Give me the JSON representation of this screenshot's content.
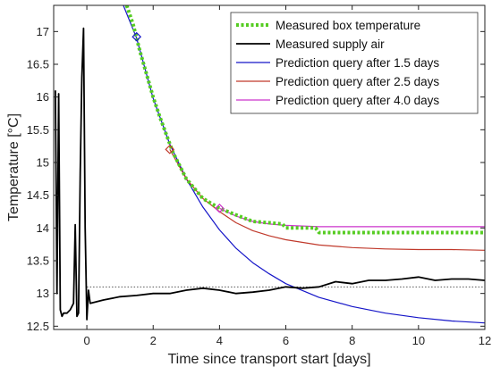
{
  "chart_data": {
    "type": "line",
    "xlabel": "Time since transport start [days]",
    "ylabel": "Temperature [°C]",
    "xlim": [
      -1,
      12
    ],
    "ylim": [
      12.45,
      17.4
    ],
    "xticks": [
      0,
      2,
      4,
      6,
      8,
      10,
      12
    ],
    "yticks": [
      12.5,
      13,
      13.5,
      14,
      14.5,
      15,
      15.5,
      16,
      16.5,
      17
    ],
    "grid": false,
    "legend_position": "top-right",
    "reference_line": {
      "y": 13.1,
      "style": "dotted",
      "color": "#555555"
    },
    "series": [
      {
        "name": "Measured box temperature",
        "style": "dotted",
        "color": "#55cc22",
        "x": [
          1.2,
          1.4,
          1.6,
          1.8,
          2.0,
          2.2,
          2.4,
          2.6,
          2.8,
          3.0,
          3.5,
          4.0,
          4.5,
          5.0,
          5.5,
          5.9,
          6.0,
          6.5,
          6.9,
          7.0,
          8.0,
          9.0,
          10.0,
          11.0,
          12.0
        ],
        "y": [
          17.4,
          17.1,
          16.7,
          16.35,
          16.0,
          15.7,
          15.42,
          15.15,
          14.95,
          14.75,
          14.45,
          14.3,
          14.2,
          14.1,
          14.08,
          14.06,
          14.0,
          14.0,
          14.0,
          13.93,
          13.93,
          13.93,
          13.93,
          13.93,
          13.93
        ]
      },
      {
        "name": "Measured supply air",
        "style": "solid",
        "color": "#000000",
        "x": [
          -0.95,
          -0.9,
          -0.85,
          -0.8,
          -0.75,
          -0.7,
          -0.6,
          -0.5,
          -0.4,
          -0.35,
          -0.3,
          -0.25,
          -0.2,
          -0.15,
          -0.1,
          -0.05,
          0.0,
          0.05,
          0.1,
          0.5,
          1.0,
          1.5,
          2.0,
          2.5,
          3.0,
          3.5,
          4.0,
          4.5,
          5.0,
          5.5,
          6.0,
          6.5,
          7.0,
          7.5,
          8.0,
          8.5,
          9.0,
          9.5,
          10.0,
          10.5,
          11.0,
          11.5,
          12.0
        ],
        "y": [
          16.1,
          13.0,
          16.05,
          12.75,
          12.65,
          12.7,
          12.7,
          12.75,
          12.85,
          14.05,
          12.65,
          12.7,
          14.85,
          16.3,
          17.05,
          14.0,
          12.6,
          13.05,
          12.85,
          12.9,
          12.95,
          12.97,
          13.0,
          13.0,
          13.05,
          13.08,
          13.05,
          13.0,
          13.02,
          13.05,
          13.1,
          13.08,
          13.1,
          13.18,
          13.15,
          13.2,
          13.2,
          13.22,
          13.25,
          13.2,
          13.22,
          13.22,
          13.2
        ]
      },
      {
        "name": "Prediction query after 1.5 days",
        "style": "solid",
        "color": "#1515c8",
        "x": [
          1.1,
          1.5,
          2.0,
          2.5,
          3.0,
          3.5,
          4.0,
          4.5,
          5.0,
          5.5,
          6.0,
          7.0,
          8.0,
          9.0,
          10.0,
          11.0,
          12.0
        ],
        "y": [
          17.4,
          16.9,
          15.98,
          15.28,
          14.75,
          14.32,
          13.97,
          13.69,
          13.47,
          13.3,
          13.15,
          12.94,
          12.8,
          12.7,
          12.63,
          12.58,
          12.55
        ]
      },
      {
        "name": "Prediction query after 2.5 days",
        "style": "solid",
        "color": "#c0392b",
        "x": [
          2.5,
          3.0,
          3.5,
          4.0,
          4.5,
          5.0,
          5.5,
          6.0,
          7.0,
          8.0,
          9.0,
          10.0,
          11.0,
          12.0
        ],
        "y": [
          15.2,
          14.75,
          14.45,
          14.25,
          14.08,
          13.96,
          13.88,
          13.82,
          13.74,
          13.7,
          13.68,
          13.67,
          13.67,
          13.66
        ]
      },
      {
        "name": "Prediction query after 4.0 days",
        "style": "solid",
        "color": "#cc33cc",
        "x": [
          4.0,
          4.5,
          5.0,
          5.5,
          6.0,
          7.0,
          8.0,
          9.0,
          10.0,
          11.0,
          12.0
        ],
        "y": [
          14.3,
          14.18,
          14.1,
          14.06,
          14.04,
          14.02,
          14.02,
          14.02,
          14.02,
          14.02,
          14.02
        ]
      }
    ],
    "markers": [
      {
        "x": 1.5,
        "y": 16.92,
        "shape": "diamond",
        "color": "#1515c8"
      },
      {
        "x": 2.5,
        "y": 15.2,
        "shape": "diamond",
        "color": "#c0392b"
      },
      {
        "x": 4.0,
        "y": 14.3,
        "shape": "diamond",
        "color": "#cc33cc"
      }
    ]
  }
}
